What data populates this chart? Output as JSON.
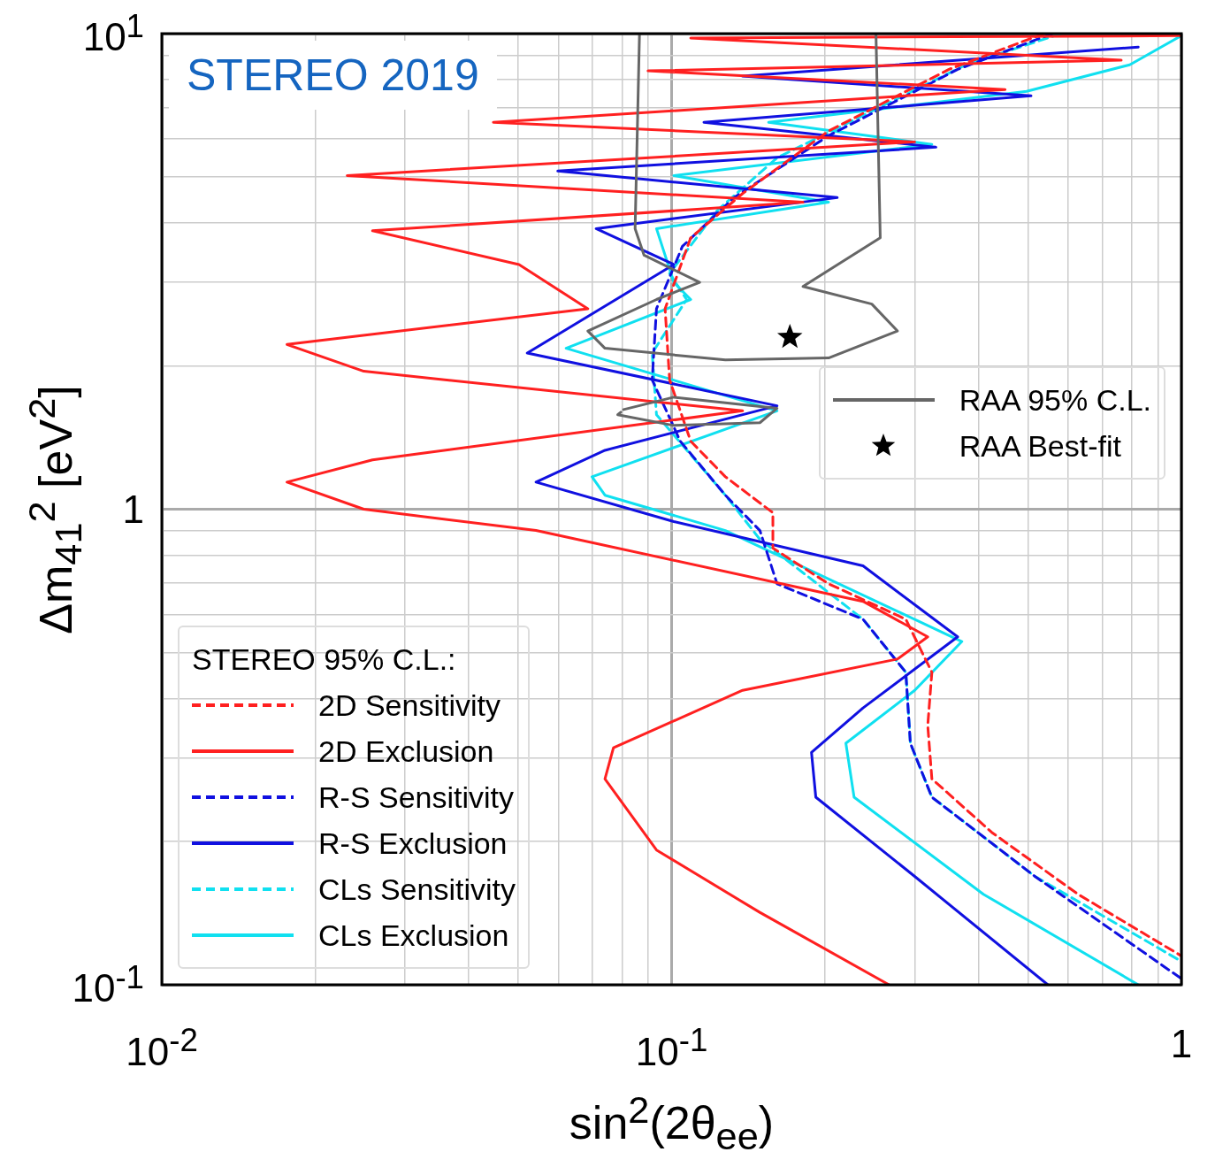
{
  "chart_data": {
    "type": "line",
    "title": "STEREO 2019",
    "xlabel": "sin$^{2}$(2θ$_{ee}$)",
    "ylabel": "Δm$_{41}$$^{2}$ [eV$^{2}$]",
    "log": "xy",
    "grid": true,
    "legend": "bottom left",
    "legend_title": "STEREO 95% C.L.:",
    "xlim": [
      0.01,
      1
    ],
    "ylim": [
      0.1,
      10
    ],
    "xticks": [
      {
        "value": 0.01,
        "label": "10$^{-2}$"
      },
      {
        "value": 0.02,
        "label": null
      },
      {
        "value": 0.03,
        "label": null
      },
      {
        "value": 0.04,
        "label": null
      },
      {
        "value": 0.05,
        "label": null
      },
      {
        "value": 0.06,
        "label": null
      },
      {
        "value": 0.07,
        "label": null
      },
      {
        "value": 0.08,
        "label": null
      },
      {
        "value": 0.09,
        "label": null
      },
      {
        "value": 0.1,
        "label": "10$^{-1}$"
      },
      {
        "value": 0.2,
        "label": null
      },
      {
        "value": 0.3,
        "label": null
      },
      {
        "value": 0.4,
        "label": null
      },
      {
        "value": 0.5,
        "label": null
      },
      {
        "value": 0.6,
        "label": null
      },
      {
        "value": 0.7,
        "label": null
      },
      {
        "value": 0.8,
        "label": null
      },
      {
        "value": 0.9,
        "label": null
      },
      {
        "value": 1,
        "label": "1"
      }
    ],
    "yticks": [
      {
        "value": 0.1,
        "label": "10$^{-1}$"
      },
      {
        "value": 0.2,
        "label": null
      },
      {
        "value": 0.3,
        "label": null
      },
      {
        "value": 0.4,
        "label": null
      },
      {
        "value": 0.5,
        "label": null
      },
      {
        "value": 0.6,
        "label": null
      },
      {
        "value": 0.7,
        "label": null
      },
      {
        "value": 0.8,
        "label": null
      },
      {
        "value": 0.9,
        "label": null
      },
      {
        "value": 1,
        "label": "1"
      },
      {
        "value": 2,
        "label": null
      },
      {
        "value": 3,
        "label": null
      },
      {
        "value": 4,
        "label": null
      },
      {
        "value": 5,
        "label": null
      },
      {
        "value": 6,
        "label": null
      },
      {
        "value": 7,
        "label": null
      },
      {
        "value": 8,
        "label": null
      },
      {
        "value": 9,
        "label": null
      },
      {
        "value": 10,
        "label": "10$^{1}$"
      }
    ],
    "series": [
      {
        "name": "RAA 95% C.L.",
        "color": "#666666",
        "line_style": "solid",
        "marker": "none",
        "x": [
          0.0865,
          0.0848,
          0.0883,
          0.1135,
          0.0934,
          0.0685,
          0.074,
          0.1275,
          0.2032,
          0.2773,
          0.247,
          0.181,
          0.2566,
          0.2517
        ],
        "values": [
          10,
          3.89,
          3.42,
          3.0,
          2.76,
          2.37,
          2.18,
          2.06,
          2.08,
          2.37,
          2.7,
          2.94,
          3.72,
          10
        ]
      },
      {
        "name": "RAA Best-fit",
        "type": "scatter",
        "color": "#000000",
        "marker": "star",
        "x": [
          0.1706
        ],
        "values": [
          2.3
        ]
      },
      {
        "color": "#666666",
        "line_style": "solid",
        "marker": "none",
        "x": [
          0.0805,
          0.101,
          0.161,
          0.149,
          0.101,
          0.0784,
          0.0795
        ],
        "values": [
          1.62,
          1.72,
          1.63,
          1.52,
          1.5,
          1.58,
          1.6
        ]
      },
      {
        "name": "2D Sensitivity",
        "color": "#ff2020",
        "line_style": "dashed",
        "marker": "none",
        "x": [
          0.537,
          0.35,
          0.2032,
          0.1378,
          0.109,
          0.0971,
          0.0991,
          0.109,
          0.1275,
          0.158,
          0.158,
          0.2032,
          0.288,
          0.324,
          0.318,
          0.324,
          0.425,
          0.627,
          1.0
        ],
        "values": [
          10,
          8.41,
          6.24,
          4.61,
          3.72,
          2.64,
          1.87,
          1.39,
          1.17,
          0.983,
          0.828,
          0.697,
          0.587,
          0.454,
          0.351,
          0.271,
          0.209,
          0.155,
          0.115
        ]
      },
      {
        "name": "2D Exclusion",
        "color": "#ff2020",
        "line_style": "solid",
        "marker": "none",
        "x": [
          1.0,
          0.109,
          0.762,
          0.0899,
          0.451,
          0.0447,
          0.2998,
          0.0231,
          0.181,
          0.0259,
          0.0502,
          0.0685,
          0.0176,
          0.0249,
          0.1378,
          0.0259,
          0.0176,
          0.0249,
          0.0542,
          0.2374,
          0.318,
          0.2773,
          0.1378,
          0.0769,
          0.074,
          0.0934,
          0.1489,
          0.267
        ],
        "values": [
          9.9,
          9.79,
          8.79,
          8.35,
          7.63,
          6.51,
          5.92,
          5.03,
          4.42,
          3.85,
          3.27,
          2.64,
          2.22,
          1.95,
          1.61,
          1.27,
          1.14,
          1.0,
          0.902,
          0.64,
          0.539,
          0.484,
          0.416,
          0.315,
          0.271,
          0.192,
          0.142,
          0.1
        ]
      },
      {
        "name": "R-S Sensitivity",
        "color": "#1010e0",
        "line_style": "dashed",
        "marker": "none",
        "x": [
          0.558,
          0.364,
          0.2032,
          0.1325,
          0.105,
          0.0934,
          0.0916,
          0.104,
          0.1275,
          0.149,
          0.161,
          0.2374,
          0.288,
          0.294,
          0.324,
          0.516,
          1.0
        ],
        "values": [
          10,
          8.41,
          6.1,
          4.52,
          3.57,
          2.64,
          1.87,
          1.39,
          1.07,
          0.902,
          0.697,
          0.587,
          0.454,
          0.322,
          0.248,
          0.169,
          0.103
        ]
      },
      {
        "name": "R-S Exclusion",
        "color": "#1010e0",
        "line_style": "solid",
        "marker": "none",
        "x": [
          0.823,
          0.1378,
          0.507,
          0.1157,
          0.33,
          0.0598,
          0.2113,
          0.0711,
          0.101,
          0.0521,
          0.161,
          0.074,
          0.0542,
          0.101,
          0.2374,
          0.364,
          0.2374,
          0.1881,
          0.1918,
          0.2998,
          0.547
        ],
        "values": [
          9.37,
          8.14,
          7.4,
          6.51,
          5.77,
          5.14,
          4.52,
          3.89,
          3.27,
          2.13,
          1.65,
          1.33,
          1.14,
          0.942,
          0.76,
          0.539,
          0.382,
          0.308,
          0.248,
          0.169,
          0.1
        ]
      },
      {
        "name": "CLs Sensitivity",
        "color": "#10e0f0",
        "line_style": "dashed",
        "marker": "none",
        "x": [
          0.58,
          0.378,
          0.161,
          0.1227,
          0.0991,
          0.107,
          0.0916,
          0.0934,
          0.1275,
          0.149,
          0.2374,
          0.288,
          0.294,
          0.324,
          0.516,
          1.0
        ],
        "values": [
          10,
          8.6,
          5.48,
          4.24,
          3.13,
          2.76,
          2.13,
          1.58,
          1.07,
          0.864,
          0.587,
          0.454,
          0.322,
          0.248,
          0.169,
          0.112
        ]
      },
      {
        "name": "CLs Exclusion",
        "color": "#10e0f0",
        "line_style": "solid",
        "marker": "none",
        "x": [
          1.0,
          0.792,
          0.497,
          0.155,
          0.324,
          0.101,
          0.2032,
          0.0934,
          0.101,
          0.109,
          0.0621,
          0.161,
          0.0698,
          0.074,
          0.1275,
          0.371,
          0.2998,
          0.2197,
          0.228,
          0.409,
          0.823
        ],
        "values": [
          9.9,
          8.6,
          7.56,
          6.51,
          5.85,
          5.03,
          4.42,
          3.89,
          3.0,
          2.76,
          2.18,
          1.61,
          1.17,
          1.07,
          0.902,
          0.527,
          0.416,
          0.322,
          0.248,
          0.155,
          0.1
        ]
      }
    ]
  }
}
